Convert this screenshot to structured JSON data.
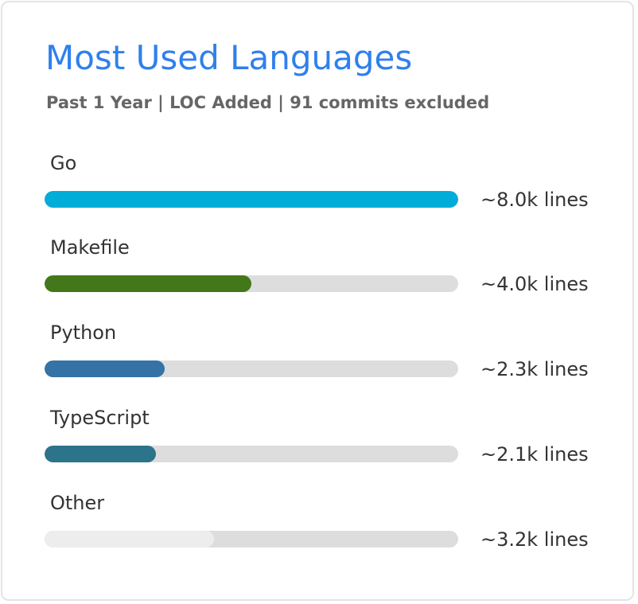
{
  "card": {
    "title": "Most Used Languages",
    "subtitle": "Past 1 Year | LOC Added | 91 commits excluded"
  },
  "languages": [
    {
      "name": "Go",
      "lines": "~8.0k lines",
      "fraction": 1.0,
      "color": "#00add8"
    },
    {
      "name": "Makefile",
      "lines": "~4.0k lines",
      "fraction": 0.5,
      "color": "#427819"
    },
    {
      "name": "Python",
      "lines": "~2.3k lines",
      "fraction": 0.29,
      "color": "#3572a5"
    },
    {
      "name": "TypeScript",
      "lines": "~2.1k lines",
      "fraction": 0.27,
      "color": "#2b7489"
    },
    {
      "name": "Other",
      "lines": "~3.2k lines",
      "fraction": 0.41,
      "color": "#ededed"
    }
  ],
  "colors": {
    "title": "#2f80ed",
    "subtitle": "#666666",
    "text": "#333333",
    "track": "#dddddd"
  }
}
